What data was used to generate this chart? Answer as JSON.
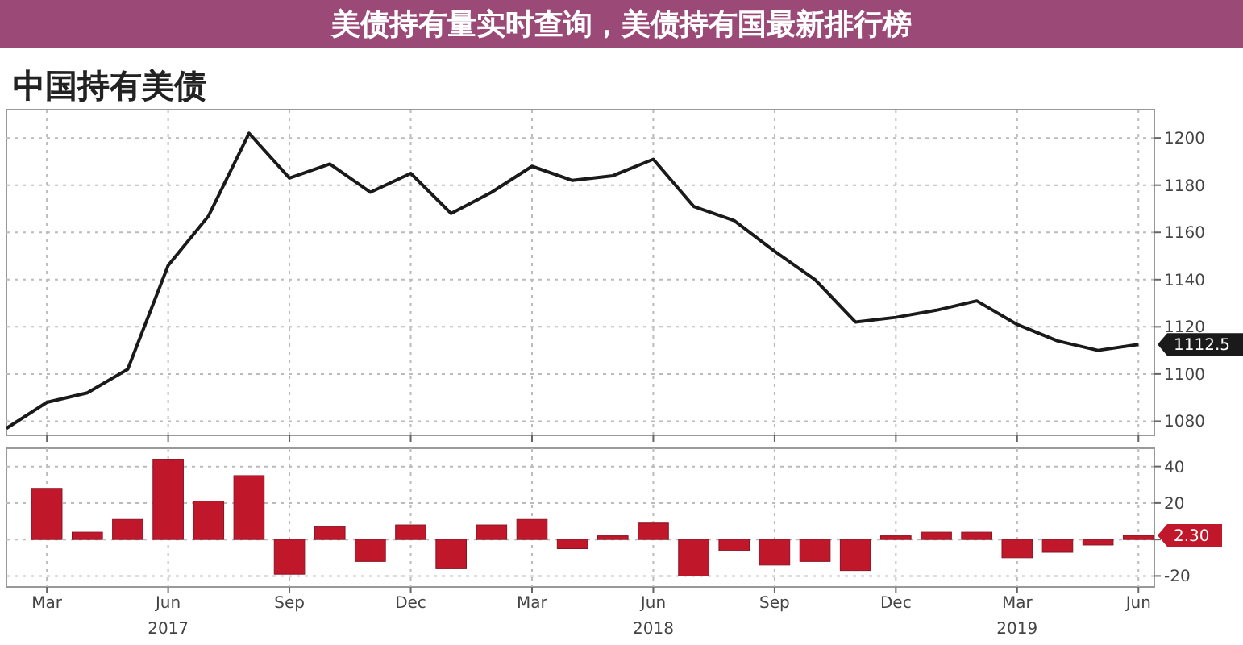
{
  "chart_data": [
    {
      "type": "line",
      "title": "中国持有美债",
      "annotations": [
        "美债持有量实时查询，美债持有国最新排行榜",
        {
          "text": "1112.5",
          "x": "2019-06",
          "y": 1112.5
        }
      ],
      "x": [
        "2017-02",
        "2017-03",
        "2017-04",
        "2017-05",
        "2017-06",
        "2017-07",
        "2017-08",
        "2017-09",
        "2017-10",
        "2017-11",
        "2017-12",
        "2018-01",
        "2018-02",
        "2018-03",
        "2018-04",
        "2018-05",
        "2018-06",
        "2018-07",
        "2018-08",
        "2018-09",
        "2018-10",
        "2018-11",
        "2018-12",
        "2019-01",
        "2019-02",
        "2019-03",
        "2019-04",
        "2019-05",
        "2019-06"
      ],
      "series": [
        {
          "color": "#1a1a1a",
          "values": [
            1077,
            1088,
            1092,
            1102,
            1146,
            1167,
            1202,
            1183,
            1189,
            1177,
            1185,
            1168,
            1177,
            1188,
            1182,
            1184,
            1191,
            1171,
            1165,
            1152,
            1140,
            1122,
            1124,
            1127,
            1131,
            1121,
            1114,
            1110,
            1112.5
          ]
        }
      ],
      "xlim": [
        "2017-02",
        "2019-06-13"
      ],
      "xticks": [
        {
          "value": "2017-03",
          "label": null
        },
        {
          "value": "2017-06",
          "label": null
        },
        {
          "value": "2017-09",
          "label": null
        },
        {
          "value": "2017-12",
          "label": null
        },
        {
          "value": "2018-03",
          "label": null
        },
        {
          "value": "2018-06",
          "label": null
        },
        {
          "value": "2018-09",
          "label": null
        },
        {
          "value": "2018-12",
          "label": null
        },
        {
          "value": "2019-03",
          "label": null
        },
        {
          "value": "2019-06",
          "label": null
        }
      ],
      "ylim": [
        1074,
        1212
      ],
      "yticks": [
        1080,
        1100,
        1120,
        1140,
        1160,
        1180,
        1200
      ],
      "grid": true,
      "tick_labels": "y"
    },
    {
      "type": "bar",
      "annotations": [
        {
          "text": "2.30",
          "x": "2019-06",
          "y": 2.3
        }
      ],
      "x": [
        "2017-03",
        "2017-04",
        "2017-05",
        "2017-06",
        "2017-07",
        "2017-08",
        "2017-09",
        "2017-10",
        "2017-11",
        "2017-12",
        "2018-01",
        "2018-02",
        "2018-03",
        "2018-04",
        "2018-05",
        "2018-06",
        "2018-07",
        "2018-08",
        "2018-09",
        "2018-10",
        "2018-11",
        "2018-12",
        "2019-01",
        "2019-02",
        "2019-03",
        "2019-04",
        "2019-05",
        "2019-06"
      ],
      "series": [
        {
          "color": "#c0182a",
          "values": [
            28,
            4,
            11,
            44,
            21,
            35,
            -19,
            7,
            -12,
            8,
            -16,
            8,
            11,
            -5,
            2,
            9,
            -20,
            -6,
            -14,
            -12,
            -17,
            2,
            4,
            4,
            -10,
            -7,
            -3,
            2.3
          ]
        }
      ],
      "xlim": [
        "2017-02",
        "2019-06-13"
      ],
      "xticks": [
        {
          "value": "2017-03",
          "label": "Mar"
        },
        {
          "value": "2017-06",
          "label": "Jun\n2017"
        },
        {
          "value": "2017-09",
          "label": "Sep"
        },
        {
          "value": "2017-12",
          "label": "Dec"
        },
        {
          "value": "2018-03",
          "label": "Mar"
        },
        {
          "value": "2018-06",
          "label": "Jun\n2018"
        },
        {
          "value": "2018-09",
          "label": "Sep"
        },
        {
          "value": "2018-12",
          "label": "Dec"
        },
        {
          "value": "2019-03",
          "label": "Mar\n2019"
        },
        {
          "value": "2019-06",
          "label": "Jun"
        }
      ],
      "ylim": [
        -26,
        50
      ],
      "yticks": [
        -20,
        {
          "value": 0,
          "label": null
        },
        20,
        40
      ],
      "grid": true
    }
  ]
}
